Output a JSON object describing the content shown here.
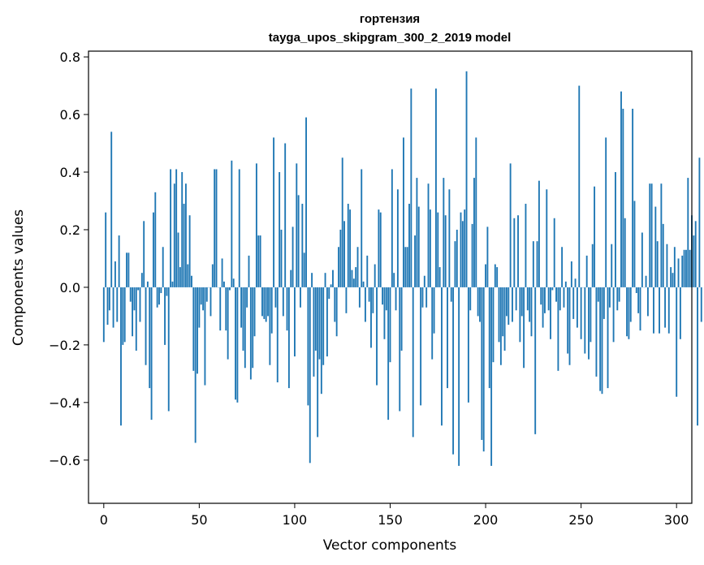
{
  "chart_data": {
    "type": "bar",
    "title": "гортензия",
    "subtitle": "tayga_upos_skipgram_300_2_2019 model",
    "xlabel": "Vector components",
    "ylabel": "Components values",
    "xlim": [
      -8,
      308
    ],
    "ylim": [
      -0.75,
      0.82
    ],
    "xticks": [
      0,
      50,
      100,
      150,
      200,
      250,
      300
    ],
    "xtick_labels": [
      "0",
      "50",
      "100",
      "150",
      "200",
      "250",
      "300"
    ],
    "yticks": [
      -0.6,
      -0.4,
      -0.2,
      0.0,
      0.2,
      0.4,
      0.6,
      0.8
    ],
    "ytick_labels": [
      "−0.6",
      "−0.4",
      "−0.2",
      "0.0",
      "0.2",
      "0.4",
      "0.6",
      "0.8"
    ],
    "grid": false,
    "bar_color": "#1f77b4",
    "values": [
      -0.19,
      0.26,
      -0.13,
      -0.08,
      0.54,
      -0.14,
      0.09,
      -0.12,
      0.18,
      -0.48,
      -0.2,
      -0.19,
      0.12,
      0.12,
      -0.05,
      -0.17,
      -0.08,
      -0.22,
      -0.01,
      -0.12,
      0.05,
      0.23,
      -0.27,
      0.02,
      -0.35,
      -0.46,
      0.26,
      0.33,
      -0.07,
      -0.06,
      -0.02,
      0.14,
      -0.2,
      -0.03,
      -0.43,
      0.41,
      0.02,
      0.36,
      0.41,
      0.19,
      0.07,
      0.4,
      0.29,
      0.36,
      0.08,
      0.25,
      0.04,
      -0.29,
      -0.54,
      -0.3,
      -0.14,
      -0.06,
      -0.08,
      -0.34,
      -0.05,
      0.0,
      -0.1,
      0.08,
      0.41,
      0.41,
      0.0,
      -0.15,
      0.1,
      0.02,
      -0.15,
      -0.25,
      -0.01,
      0.44,
      0.03,
      -0.39,
      -0.4,
      0.41,
      -0.14,
      -0.22,
      -0.28,
      -0.07,
      0.11,
      -0.32,
      -0.28,
      -0.17,
      0.43,
      0.18,
      0.18,
      -0.1,
      -0.11,
      -0.12,
      -0.1,
      -0.27,
      -0.16,
      0.52,
      -0.07,
      -0.33,
      0.4,
      0.2,
      -0.1,
      0.5,
      -0.15,
      -0.35,
      0.06,
      0.21,
      -0.24,
      0.43,
      0.32,
      -0.07,
      0.29,
      0.12,
      0.59,
      -0.41,
      -0.61,
      0.05,
      -0.31,
      -0.22,
      -0.52,
      -0.25,
      -0.37,
      -0.27,
      0.05,
      -0.24,
      -0.04,
      0.01,
      0.06,
      -0.12,
      -0.17,
      0.14,
      0.2,
      0.45,
      0.23,
      -0.09,
      0.29,
      0.27,
      0.06,
      0.03,
      0.07,
      0.14,
      -0.07,
      0.41,
      0.02,
      -0.12,
      0.11,
      -0.05,
      -0.21,
      -0.09,
      0.08,
      -0.34,
      0.27,
      0.26,
      -0.06,
      -0.18,
      -0.08,
      -0.46,
      -0.26,
      0.41,
      0.05,
      -0.08,
      0.34,
      -0.43,
      -0.22,
      0.52,
      0.14,
      0.14,
      0.29,
      0.69,
      -0.52,
      0.18,
      0.38,
      0.28,
      -0.41,
      -0.07,
      0.04,
      -0.07,
      0.36,
      0.27,
      -0.25,
      -0.16,
      0.69,
      0.26,
      0.07,
      -0.48,
      0.38,
      0.25,
      -0.35,
      0.34,
      -0.05,
      -0.58,
      0.16,
      0.2,
      -0.62,
      0.26,
      0.23,
      0.27,
      0.75,
      -0.4,
      -0.08,
      0.22,
      0.38,
      0.52,
      -0.1,
      -0.12,
      -0.53,
      -0.57,
      0.08,
      0.21,
      -0.35,
      -0.62,
      -0.26,
      0.08,
      0.07,
      -0.19,
      -0.27,
      -0.17,
      -0.22,
      -0.1,
      -0.13,
      0.43,
      -0.12,
      0.24,
      -0.08,
      0.25,
      -0.19,
      -0.1,
      -0.28,
      0.29,
      -0.08,
      -0.12,
      -0.17,
      0.16,
      -0.51,
      0.16,
      0.37,
      -0.06,
      -0.14,
      -0.09,
      0.34,
      -0.08,
      -0.18,
      -0.01,
      0.24,
      -0.05,
      -0.29,
      -0.08,
      0.14,
      -0.07,
      0.02,
      -0.23,
      -0.27,
      0.09,
      -0.11,
      0.03,
      -0.14,
      0.7,
      -0.18,
      0.0,
      -0.23,
      0.11,
      -0.25,
      -0.19,
      0.15,
      0.35,
      -0.31,
      -0.05,
      -0.36,
      -0.37,
      -0.11,
      0.52,
      -0.35,
      -0.07,
      0.15,
      -0.19,
      0.4,
      -0.08,
      -0.05,
      0.68,
      0.62,
      0.24,
      -0.17,
      -0.18,
      -0.12,
      0.62,
      0.3,
      -0.02,
      -0.09,
      -0.15,
      0.19,
      0.0,
      0.04,
      -0.1,
      0.36,
      0.36,
      -0.16,
      0.28,
      0.16,
      -0.16,
      0.36,
      0.22,
      -0.14,
      0.15,
      -0.16,
      0.07,
      0.05,
      0.14,
      -0.38,
      0.1,
      -0.18,
      0.11,
      0.13,
      0.13,
      0.38,
      0.13,
      0.25,
      0.18,
      0.23,
      -0.48,
      0.45,
      -0.12
    ]
  }
}
